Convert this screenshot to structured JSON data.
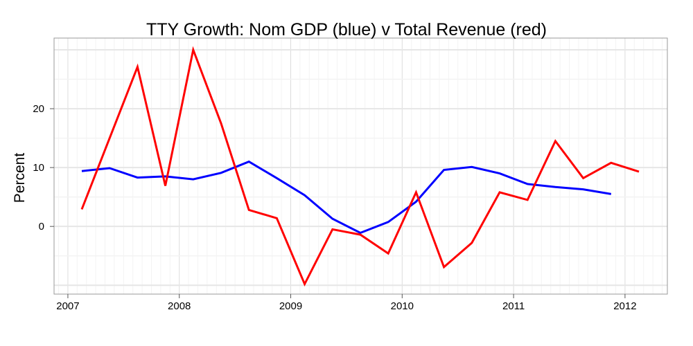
{
  "chart_data": {
    "type": "line",
    "title": "TTY Growth: Nom GDP (blue) v Total Revenue (red)",
    "xlabel": "",
    "ylabel": "Percent",
    "xlim": [
      2006.876,
      2012.38
    ],
    "ylim": [
      -11.5,
      32
    ],
    "x_ticks": [
      2007,
      2008,
      2009,
      2010,
      2011,
      2012
    ],
    "y_ticks": [
      0,
      10,
      20
    ],
    "grid": true,
    "series": [
      {
        "color": "#0000ff",
        "x": [
          2007.125,
          2007.375,
          2007.625,
          2007.875,
          2008.125,
          2008.375,
          2008.625,
          2008.875,
          2009.125,
          2009.375,
          2009.625,
          2009.875,
          2010.125,
          2010.375,
          2010.625,
          2010.875,
          2011.125,
          2011.375,
          2011.625,
          2011.875
        ],
        "values": [
          9.4,
          9.9,
          8.3,
          8.5,
          8.0,
          9.1,
          11.0,
          8.2,
          5.3,
          1.3,
          -1.1,
          0.75,
          4.2,
          9.6,
          10.1,
          9.0,
          7.2,
          6.7,
          6.3,
          5.5
        ]
      },
      {
        "color": "#ff0000",
        "x": [
          2007.125,
          2007.375,
          2007.625,
          2007.875,
          2008.125,
          2008.375,
          2008.625,
          2008.875,
          2009.125,
          2009.375,
          2009.625,
          2009.875,
          2010.125,
          2010.375,
          2010.625,
          2010.875,
          2011.125,
          2011.375,
          2011.625,
          2011.875,
          2012.125
        ],
        "values": [
          2.9,
          15.0,
          27.1,
          6.9,
          30.0,
          17.5,
          2.8,
          1.4,
          -9.8,
          -0.5,
          -1.4,
          -4.6,
          5.8,
          -6.9,
          -2.8,
          5.8,
          4.5,
          14.5,
          8.2,
          10.8,
          9.3
        ]
      }
    ]
  }
}
